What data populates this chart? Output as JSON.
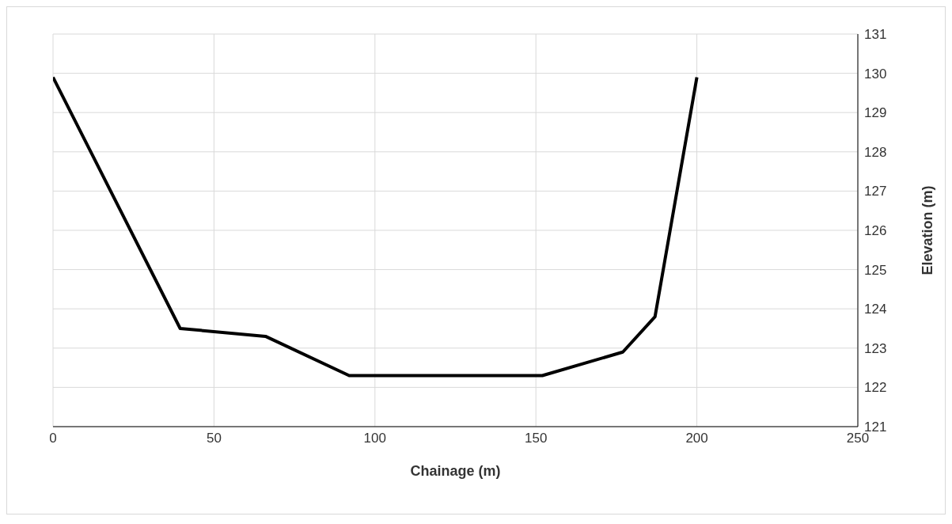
{
  "chart_data": {
    "type": "line",
    "xlabel": "Chainage (m)",
    "ylabel": "Elevation (m)",
    "x": [
      0,
      39.5,
      66,
      92,
      152,
      177,
      187,
      200
    ],
    "series": [
      {
        "color": "#000000",
        "values": [
          129.9,
          123.5,
          123.3,
          122.3,
          122.3,
          122.9,
          123.8,
          129.9
        ]
      }
    ],
    "xlim": [
      0,
      250
    ],
    "xticks": [
      0,
      50,
      100,
      150,
      200,
      250
    ],
    "ylim": [
      121,
      131
    ],
    "yticks": [
      121,
      122,
      123,
      124,
      125,
      126,
      127,
      128,
      129,
      130,
      131
    ],
    "grid": true,
    "legend": false,
    "marker": "none",
    "line_style": "solid"
  }
}
